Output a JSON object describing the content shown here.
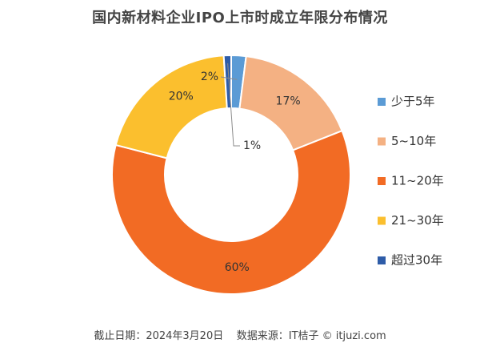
{
  "chart_data": {
    "type": "pie",
    "title": "国内新材料企业IPO上市时成立年限分布情况",
    "categories": [
      "少于5年",
      "5~10年",
      "11~20年",
      "21~30年",
      "超过30年"
    ],
    "values": [
      2,
      17,
      60,
      20,
      1
    ],
    "value_labels": [
      "2%",
      "17%",
      "60%",
      "20%",
      "1%"
    ],
    "colors": [
      "#5b9bd5",
      "#f4b183",
      "#f26b24",
      "#fbbf2e",
      "#2e5ca8"
    ],
    "legend_position": "right"
  },
  "footer": {
    "date_text": "截止日期：2024年3月20日",
    "source_text": "数据来源：IT桔子 © itjuzi.com"
  }
}
